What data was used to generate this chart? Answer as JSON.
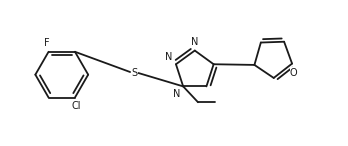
{
  "bg_color": "#ffffff",
  "line_color": "#1a1a1a",
  "line_width": 1.3,
  "font_size": 7.0,
  "fig_width": 3.48,
  "fig_height": 1.46,
  "dpi": 100,
  "xlim": [
    0,
    10.5
  ],
  "ylim": [
    0,
    4.2
  ]
}
